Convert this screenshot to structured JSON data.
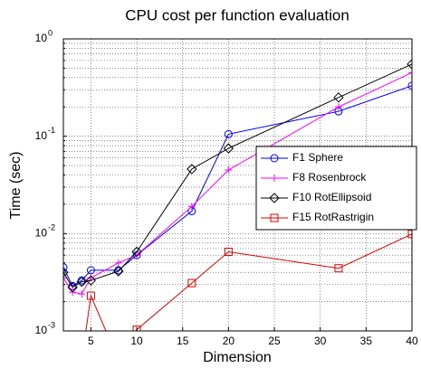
{
  "chart_data": {
    "type": "line",
    "title": "CPU cost per function evaluation",
    "xlabel": "Dimension",
    "ylabel": "Time (sec)",
    "xlim": [
      2,
      40
    ],
    "ylim": [
      0.001,
      1
    ],
    "log_y": true,
    "grid": true,
    "legend_position": "right",
    "xticks": [
      5,
      10,
      15,
      20,
      25,
      30,
      35,
      40
    ],
    "yticks": [
      {
        "value": 0.001,
        "label": "10",
        "exponent": "-3"
      },
      {
        "value": 0.01,
        "label": "10",
        "exponent": "-2"
      },
      {
        "value": 0.1,
        "label": "10",
        "exponent": "-1"
      },
      {
        "value": 1,
        "label": "10",
        "exponent": "0"
      }
    ],
    "series": [
      {
        "name": "F1 Sphere",
        "color": "#0000ff",
        "marker": "circle",
        "x": [
          2,
          3,
          4,
          5,
          8,
          10,
          16,
          20,
          32,
          40
        ],
        "values": [
          0.0045,
          0.0029,
          0.0033,
          0.0042,
          0.0042,
          0.006,
          0.017,
          0.105,
          0.18,
          0.33
        ]
      },
      {
        "name": "F8 Rosenbrock",
        "color": "#ff00ff",
        "marker": "plus",
        "x": [
          2,
          3,
          4,
          5,
          8,
          10,
          16,
          20,
          32,
          40
        ],
        "values": [
          0.0035,
          0.0025,
          0.0024,
          0.0035,
          0.005,
          0.006,
          0.019,
          0.045,
          0.2,
          0.45
        ]
      },
      {
        "name": "F10 RotEllipsoid",
        "color": "#000000",
        "marker": "diamond",
        "x": [
          2,
          3,
          4,
          5,
          8,
          10,
          16,
          20,
          32,
          40
        ],
        "values": [
          0.004,
          0.0028,
          0.0032,
          0.0033,
          0.0041,
          0.0065,
          0.046,
          0.075,
          0.25,
          0.55
        ]
      },
      {
        "name": "F15 RotRastrigin",
        "color": "#e00000",
        "marker": "square",
        "x": [
          4,
          5,
          8,
          10,
          16,
          20,
          32,
          40
        ],
        "values": [
          0.0005,
          0.0023,
          0.0005,
          0.00103,
          0.0031,
          0.0065,
          0.0044,
          0.0099
        ]
      }
    ]
  }
}
